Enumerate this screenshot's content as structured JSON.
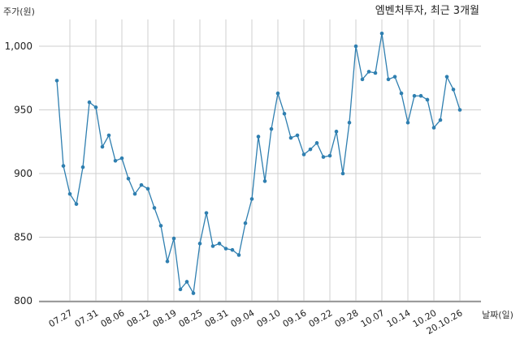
{
  "chart_data": {
    "type": "line",
    "title": "엠벤처투자, 최근 3개월",
    "ylabel": "주가(원)",
    "xlabel": "날짜(일)",
    "ylim": [
      800,
      1020
    ],
    "yticks": [
      800,
      850,
      900,
      950,
      "1,000"
    ],
    "ytick_values": [
      800,
      850,
      900,
      950,
      1000
    ],
    "xticks": [
      "07.27",
      "07.31",
      "08.06",
      "08.12",
      "08.19",
      "08.25",
      "08.31",
      "09.04",
      "09.10",
      "09.16",
      "09.22",
      "09.28",
      "10.07",
      "10.14",
      "10.20",
      "20.10.26"
    ],
    "xtick_indices": [
      2,
      6,
      10,
      14,
      18,
      22,
      26,
      30,
      34,
      38,
      42,
      46,
      50,
      54,
      58,
      62
    ],
    "line_color": "#2f7fb0",
    "grid": true,
    "series": [
      {
        "values": [
          973,
          906,
          884,
          876,
          905,
          956,
          952,
          921,
          930,
          910,
          912,
          896,
          884,
          891,
          888,
          873,
          859,
          831,
          849,
          809,
          815,
          806,
          845,
          869,
          843,
          845,
          841,
          840,
          836,
          861,
          880,
          929,
          894,
          935,
          963,
          947,
          928,
          930,
          915,
          919,
          924,
          913,
          914,
          933,
          900,
          940,
          1000,
          974,
          980,
          979,
          1010,
          974,
          976,
          963,
          940,
          961,
          961,
          958,
          936,
          942,
          976,
          966,
          950
        ]
      }
    ]
  }
}
